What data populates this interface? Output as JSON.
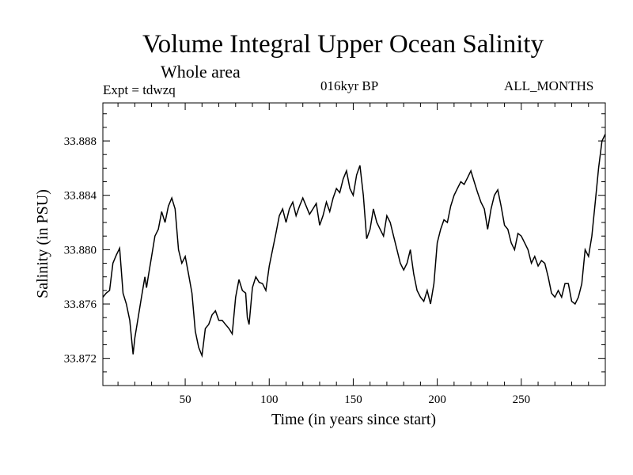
{
  "header": {
    "title": "Volume Integral Upper Ocean Salinity",
    "subtitle": "Whole area",
    "expt": "Expt = tdwzq",
    "period": "016kyr BP",
    "months": "ALL_MONTHS"
  },
  "chart_data": {
    "type": "line",
    "title": "Volume Integral Upper Ocean Salinity",
    "xlabel": "Time (in years since start)",
    "ylabel": "Salinity (in PSU)",
    "xlim": [
      1,
      300
    ],
    "ylim": [
      33.87,
      33.8908
    ],
    "xticks": [
      50,
      100,
      150,
      200,
      250
    ],
    "yticks": [
      33.872,
      33.876,
      33.88,
      33.884,
      33.888
    ],
    "ytick_labels": [
      "33.872",
      "33.876",
      "33.880",
      "33.884",
      "33.888"
    ],
    "grid": false,
    "series": [
      {
        "x": [
          1,
          3,
          5,
          7,
          9,
          11,
          13,
          15,
          17,
          19,
          20,
          22,
          24,
          26,
          27,
          28,
          30,
          32,
          34,
          36,
          38,
          40,
          42,
          44,
          46,
          48,
          50,
          52,
          54,
          56,
          58,
          60,
          62,
          64,
          66,
          68,
          70,
          72,
          74,
          76,
          78,
          80,
          82,
          84,
          86,
          87,
          88,
          90,
          92,
          94,
          96,
          98,
          100,
          102,
          104,
          106,
          108,
          110,
          112,
          114,
          116,
          118,
          120,
          122,
          124,
          126,
          128,
          130,
          132,
          134,
          136,
          138,
          140,
          142,
          144,
          146,
          148,
          150,
          152,
          154,
          156,
          158,
          160,
          162,
          164,
          166,
          168,
          170,
          172,
          174,
          176,
          178,
          180,
          182,
          184,
          186,
          188,
          190,
          192,
          194,
          196,
          198,
          200,
          202,
          204,
          206,
          208,
          210,
          212,
          214,
          216,
          218,
          220,
          222,
          224,
          226,
          228,
          230,
          232,
          234,
          236,
          238,
          240,
          242,
          244,
          246,
          248,
          250,
          252,
          254,
          256,
          258,
          260,
          262,
          264,
          266,
          268,
          270,
          272,
          274,
          276,
          278,
          280,
          282,
          284,
          286,
          288,
          290,
          292,
          294,
          296,
          298,
          300
        ],
        "values": [
          33.8765,
          33.8768,
          33.877,
          33.879,
          33.8796,
          33.8801,
          33.8768,
          33.876,
          33.8748,
          33.8723,
          33.8735,
          33.875,
          33.8765,
          33.878,
          33.8772,
          33.878,
          33.8795,
          33.881,
          33.8815,
          33.8828,
          33.882,
          33.8832,
          33.8838,
          33.883,
          33.88,
          33.879,
          33.8795,
          33.8782,
          33.8768,
          33.874,
          33.8728,
          33.8722,
          33.8742,
          33.8745,
          33.8752,
          33.8755,
          33.8748,
          33.8748,
          33.8745,
          33.8742,
          33.8738,
          33.8765,
          33.8778,
          33.877,
          33.8768,
          33.875,
          33.8745,
          33.8772,
          33.878,
          33.8776,
          33.8775,
          33.877,
          33.8788,
          33.88,
          33.8812,
          33.8825,
          33.883,
          33.882,
          33.883,
          33.8835,
          33.8825,
          33.8832,
          33.8838,
          33.8832,
          33.8826,
          33.883,
          33.8834,
          33.8818,
          33.8825,
          33.8835,
          33.8828,
          33.8838,
          33.8845,
          33.8842,
          33.8852,
          33.8858,
          33.8845,
          33.884,
          33.8855,
          33.8862,
          33.884,
          33.8808,
          33.8815,
          33.883,
          33.882,
          33.8815,
          33.881,
          33.8825,
          33.882,
          33.881,
          33.88,
          33.879,
          33.8785,
          33.879,
          33.88,
          33.8782,
          33.877,
          33.8765,
          33.8762,
          33.877,
          33.876,
          33.8775,
          33.8805,
          33.8815,
          33.8822,
          33.882,
          33.8832,
          33.884,
          33.8845,
          33.885,
          33.8848,
          33.8853,
          33.8858,
          33.885,
          33.8842,
          33.8835,
          33.883,
          33.8815,
          33.883,
          33.884,
          33.8844,
          33.8832,
          33.8818,
          33.8815,
          33.8805,
          33.88,
          33.8812,
          33.881,
          33.8805,
          33.88,
          33.879,
          33.8795,
          33.8788,
          33.8792,
          33.879,
          33.878,
          33.8768,
          33.8765,
          33.877,
          33.8765,
          33.8775,
          33.8775,
          33.8762,
          33.876,
          33.8765,
          33.8775,
          33.88,
          33.8795,
          33.881,
          33.8835,
          33.886,
          33.888,
          33.8885
        ]
      }
    ]
  }
}
